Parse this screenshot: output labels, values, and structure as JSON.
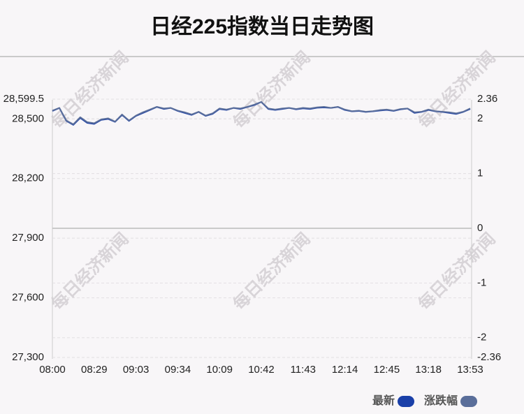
{
  "chart_data": {
    "type": "line",
    "title": "日经225指数当日走势图",
    "watermark": "每日经济新闻",
    "categories": [
      "08:00",
      null,
      null,
      null,
      null,
      null,
      "08:29",
      null,
      null,
      null,
      null,
      null,
      "09:03",
      null,
      null,
      null,
      null,
      null,
      "09:34",
      null,
      null,
      null,
      null,
      null,
      "10:09",
      null,
      null,
      null,
      null,
      null,
      "10:42",
      null,
      null,
      null,
      null,
      null,
      "11:43",
      null,
      null,
      null,
      null,
      null,
      "12:14",
      null,
      null,
      null,
      null,
      null,
      "12:45",
      null,
      null,
      null,
      null,
      null,
      "13:18",
      null,
      null,
      null,
      null,
      null,
      "13:53"
    ],
    "series": [
      {
        "name": "最新",
        "color": "#1a3fa8",
        "values": [
          28540,
          28555,
          28490,
          28470,
          28505,
          28480,
          28475,
          28495,
          28500,
          28485,
          28520,
          28490,
          28515,
          28530,
          28545,
          28560,
          28550,
          28555,
          28540,
          28530,
          28520,
          28535,
          28515,
          28525,
          28550,
          28545,
          28555,
          28550,
          28560,
          28570,
          28585,
          28550,
          28545,
          28550,
          28555,
          28548,
          28553,
          28550,
          28556,
          28558,
          28555,
          28560,
          28545,
          28538,
          28540,
          28535,
          28538,
          28542,
          28545,
          28540,
          28548,
          28552,
          28530,
          28535,
          28545,
          28538,
          28535,
          28530,
          28525,
          28535,
          28550
        ]
      },
      {
        "name": "涨跌幅",
        "color": "#5a6e9a",
        "axis": "y2",
        "values": [
          2.15,
          2.2,
          1.97,
          1.9,
          2.03,
          1.94,
          1.92,
          1.99,
          2.01,
          1.95,
          2.08,
          1.97,
          2.06,
          2.12,
          2.17,
          2.22,
          2.19,
          2.2,
          2.15,
          2.12,
          2.08,
          2.13,
          2.06,
          2.1,
          2.19,
          2.17,
          2.2,
          2.19,
          2.22,
          2.26,
          2.31,
          2.19,
          2.17,
          2.19,
          2.2,
          2.18,
          2.2,
          2.19,
          2.21,
          2.22,
          2.2,
          2.22,
          2.17,
          2.14,
          2.15,
          2.13,
          2.14,
          2.16,
          2.17,
          2.15,
          2.18,
          2.19,
          2.12,
          2.13,
          2.17,
          2.14,
          2.13,
          2.12,
          2.1,
          2.13,
          2.19
        ]
      }
    ],
    "ylim": [
      27300,
      28599.5
    ],
    "yticks": [
      {
        "value": 27300,
        "label": "27,300"
      },
      {
        "value": 27600,
        "label": "27,600"
      },
      {
        "value": 27900,
        "label": "27,900"
      },
      {
        "value": 28200,
        "label": "28,200"
      },
      {
        "value": 28500,
        "label": "28,500"
      },
      {
        "value": 28599.5,
        "label": "28,599.5"
      }
    ],
    "y2lim": [
      -2.36,
      2.36
    ],
    "y2ticks": [
      -2.36,
      -2,
      -1,
      0,
      1,
      2,
      2.36
    ],
    "grid": true
  }
}
